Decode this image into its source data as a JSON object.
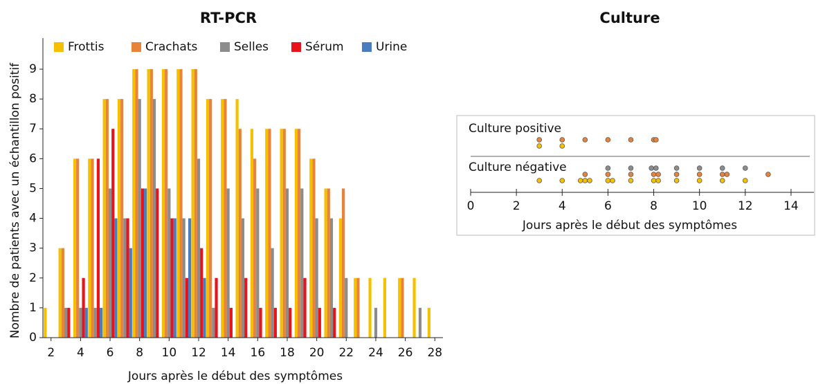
{
  "chart_data": [
    {
      "type": "bar",
      "title": "RT-PCR",
      "xlabel": "Jours après le début des symptômes",
      "ylabel": "Nombre de patients avec un échantillon positif",
      "x": [
        2,
        3,
        4,
        5,
        6,
        7,
        8,
        9,
        10,
        11,
        12,
        13,
        14,
        15,
        16,
        17,
        18,
        19,
        20,
        21,
        22,
        23,
        24,
        25,
        26,
        27,
        28
      ],
      "xlim": [
        1.45,
        28.55
      ],
      "xticks": [
        2,
        4,
        6,
        8,
        10,
        12,
        14,
        16,
        18,
        20,
        22,
        24,
        26,
        28
      ],
      "ylim": [
        0,
        9
      ],
      "yticks": [
        0,
        1,
        2,
        3,
        4,
        5,
        6,
        7,
        8,
        9
      ],
      "legend": "top",
      "series": [
        {
          "name": "Frottis",
          "color": "#f5c000",
          "values": [
            1,
            3,
            6,
            6,
            8,
            8,
            9,
            9,
            9,
            9,
            9,
            8,
            8,
            8,
            7,
            7,
            7,
            7,
            6,
            5,
            4,
            2,
            2,
            2,
            2,
            2,
            1
          ]
        },
        {
          "name": "Crachats",
          "color": "#e8833a",
          "values": [
            0,
            3,
            6,
            6,
            8,
            8,
            9,
            9,
            9,
            9,
            9,
            8,
            8,
            7,
            6,
            7,
            7,
            7,
            6,
            5,
            5,
            2,
            0,
            0,
            2,
            0,
            0
          ]
        },
        {
          "name": "Selles",
          "color": "#8c8c8c",
          "values": [
            0,
            1,
            1,
            1,
            5,
            4,
            8,
            8,
            5,
            4,
            6,
            1,
            5,
            4,
            5,
            3,
            5,
            5,
            4,
            4,
            2,
            0,
            1,
            0,
            0,
            1,
            0
          ]
        },
        {
          "name": "Sérum",
          "color": "#e8141c",
          "values": [
            0,
            1,
            2,
            6,
            7,
            4,
            5,
            5,
            4,
            2,
            3,
            2,
            1,
            2,
            1,
            1,
            1,
            2,
            1,
            1,
            0,
            0,
            0,
            0,
            0,
            0,
            0
          ]
        },
        {
          "name": "Urine",
          "color": "#4a7cc0",
          "values": [
            0,
            0,
            1,
            1,
            4,
            3,
            5,
            0,
            4,
            4,
            2,
            0,
            0,
            0,
            0,
            0,
            0,
            0,
            0,
            0,
            0,
            0,
            0,
            0,
            0,
            0,
            0
          ]
        }
      ]
    },
    {
      "type": "strip",
      "title": "Culture",
      "xlabel": "Jours après le début des symptômes",
      "xlim": [
        0,
        15
      ],
      "xticks": [
        0,
        2,
        4,
        6,
        8,
        10,
        12,
        14
      ],
      "groups": [
        {
          "label": "Culture positive",
          "rows": [
            {
              "color": "#e8833a",
              "x": [
                3,
                4,
                5,
                6,
                7,
                8,
                8.1
              ]
            },
            {
              "color": "#f5c000",
              "x": [
                3,
                4
              ]
            }
          ]
        },
        {
          "label": "Culture négative",
          "rows": [
            {
              "color": "#8c8c8c",
              "x": [
                6,
                7,
                7.9,
                8.1,
                9,
                10,
                11,
                12
              ]
            },
            {
              "color": "#e8833a",
              "x": [
                5,
                6,
                7,
                8,
                8.2,
                9,
                10,
                11,
                11.2,
                13
              ]
            },
            {
              "color": "#f5c000",
              "x": [
                3,
                4,
                4.8,
                5,
                5.2,
                6,
                6.2,
                7,
                8,
                8.2,
                9,
                10,
                11,
                12
              ]
            }
          ]
        }
      ]
    }
  ]
}
